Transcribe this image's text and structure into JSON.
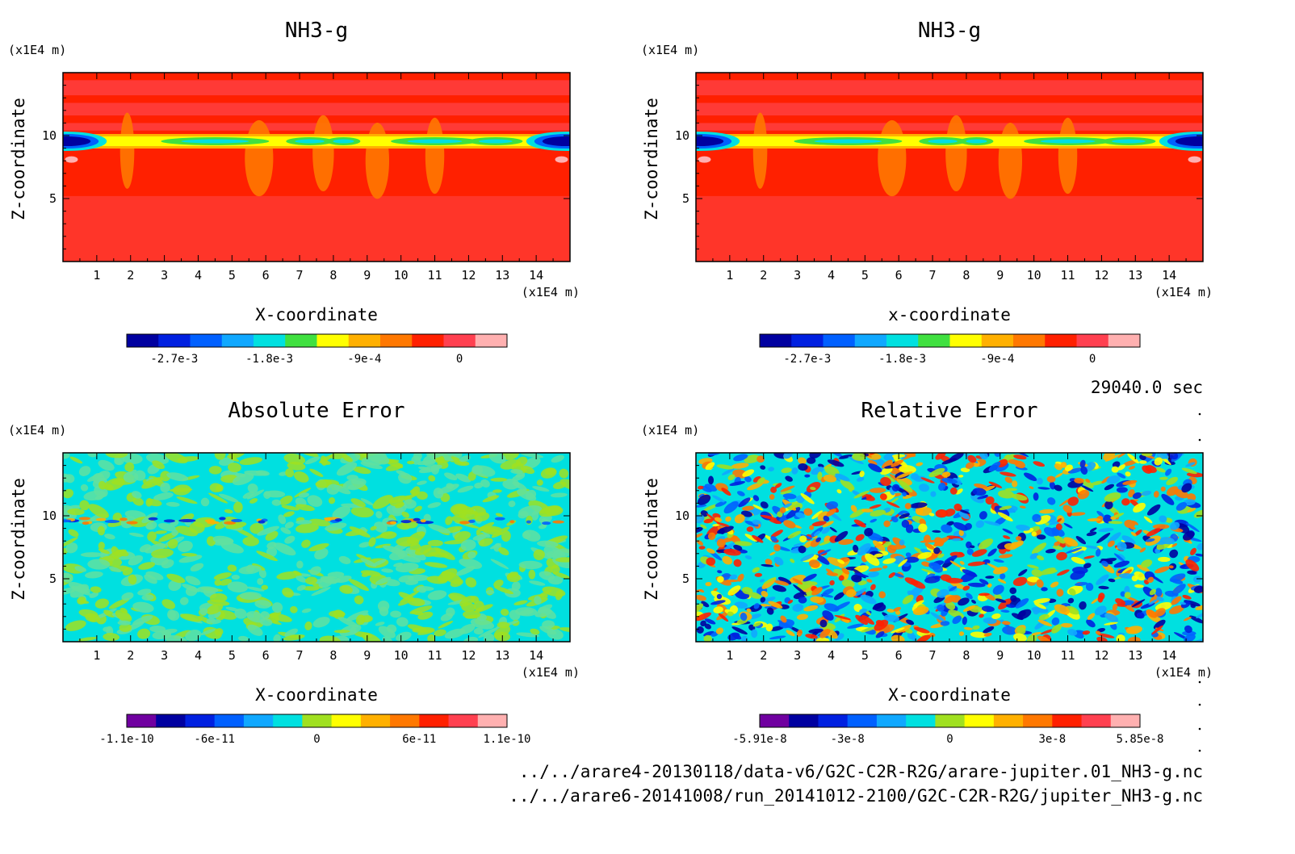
{
  "panels": [
    {
      "id": "nh3-g-left",
      "title": "NH3-g",
      "xlabel": "X-coordinate",
      "ylabel": "Z-coordinate",
      "x_unit": "(x1E4 m)",
      "y_unit": "(x1E4 m)",
      "x_ticks": [
        "1",
        "2",
        "3",
        "4",
        "5",
        "6",
        "7",
        "8",
        "9",
        "10",
        "11",
        "12",
        "13",
        "14"
      ],
      "y_ticks": [
        "5",
        "10"
      ],
      "field": "nh3",
      "colorbar": {
        "colors": [
          "#0000a0",
          "#0020e0",
          "#0060ff",
          "#10a8ff",
          "#00e0e0",
          "#40e040",
          "#ffff00",
          "#ffb000",
          "#ff7800",
          "#ff2000",
          "#ff4050",
          "#ffb0b0"
        ],
        "labels": [
          {
            "text": "-2.7e-3",
            "pos": 1.5
          },
          {
            "text": "-1.8e-3",
            "pos": 4.5
          },
          {
            "text": "-9e-4",
            "pos": 7.5
          },
          {
            "text": "0",
            "pos": 10.5
          }
        ]
      }
    },
    {
      "id": "nh3-g-right",
      "title": "NH3-g",
      "xlabel": "x-coordinate",
      "ylabel": "Z-coordinate",
      "x_unit": "(x1E4 m)",
      "y_unit": "(x1E4 m)",
      "x_ticks": [
        "1",
        "2",
        "3",
        "4",
        "5",
        "6",
        "7",
        "8",
        "9",
        "10",
        "11",
        "12",
        "13",
        "14"
      ],
      "y_ticks": [
        "5",
        "10"
      ],
      "field": "nh3",
      "colorbar": {
        "colors": [
          "#0000a0",
          "#0020e0",
          "#0060ff",
          "#10a8ff",
          "#00e0e0",
          "#40e040",
          "#ffff00",
          "#ffb000",
          "#ff7800",
          "#ff2000",
          "#ff4050",
          "#ffb0b0"
        ],
        "labels": [
          {
            "text": "-2.7e-3",
            "pos": 1.5
          },
          {
            "text": "-1.8e-3",
            "pos": 4.5
          },
          {
            "text": "-9e-4",
            "pos": 7.5
          },
          {
            "text": "0",
            "pos": 10.5
          }
        ]
      }
    },
    {
      "id": "absolute-error",
      "title": "Absolute Error",
      "xlabel": "X-coordinate",
      "ylabel": "Z-coordinate",
      "x_unit": "(x1E4 m)",
      "y_unit": "(x1E4 m)",
      "x_ticks": [
        "1",
        "2",
        "3",
        "4",
        "5",
        "6",
        "7",
        "8",
        "9",
        "10",
        "11",
        "12",
        "13",
        "14"
      ],
      "y_ticks": [
        "5",
        "10"
      ],
      "field": "abs",
      "colorbar": {
        "colors": [
          "#7000a0",
          "#0000a0",
          "#0020e0",
          "#0060ff",
          "#10a8ff",
          "#00e0e0",
          "#a0e020",
          "#ffff00",
          "#ffb000",
          "#ff7800",
          "#ff2000",
          "#ff4050",
          "#ffb0b0"
        ],
        "labels": [
          {
            "text": "-1.1e-10",
            "pos": 0
          },
          {
            "text": "-6e-11",
            "pos": 3
          },
          {
            "text": "0",
            "pos": 6.5
          },
          {
            "text": "6e-11",
            "pos": 10
          },
          {
            "text": "1.1e-10",
            "pos": 13
          }
        ]
      }
    },
    {
      "id": "relative-error",
      "title": "Relative Error",
      "xlabel": "X-coordinate",
      "ylabel": "Z-coordinate",
      "x_unit": "(x1E4 m)",
      "y_unit": "(x1E4 m)",
      "x_ticks": [
        "1",
        "2",
        "3",
        "4",
        "5",
        "6",
        "7",
        "8",
        "9",
        "10",
        "11",
        "12",
        "13",
        "14"
      ],
      "y_ticks": [
        "5",
        "10"
      ],
      "field": "rel",
      "colorbar": {
        "colors": [
          "#7000a0",
          "#0000a0",
          "#0020e0",
          "#0060ff",
          "#10a8ff",
          "#00e0e0",
          "#a0e020",
          "#ffff00",
          "#ffb000",
          "#ff7800",
          "#ff2000",
          "#ff4050",
          "#ffb0b0"
        ],
        "labels": [
          {
            "text": "-5.91e-8",
            "pos": 0
          },
          {
            "text": "-3e-8",
            "pos": 3
          },
          {
            "text": "0",
            "pos": 6.5
          },
          {
            "text": "3e-8",
            "pos": 10
          },
          {
            "text": "5.85e-8",
            "pos": 13
          }
        ]
      }
    }
  ],
  "time_label": "29040.0 sec",
  "file_paths": [
    "../../arare4-20130118/data-v6/G2C-C2R-R2G/arare-jupiter.01_NH3-g.nc",
    "../../arare6-20141008/run_20141012-2100/G2C-C2R-R2G/jupiter_NH3-g.nc"
  ],
  "chart_data": [
    {
      "type": "heatmap",
      "title": "NH3-g",
      "xlabel": "X-coordinate",
      "ylabel": "Z-coordinate",
      "x_unit": "(x1E4 m)",
      "y_unit": "(x1E4 m)",
      "xlim": [
        0,
        15
      ],
      "ylim": [
        0,
        15
      ],
      "x_ticks": [
        1,
        2,
        3,
        4,
        5,
        6,
        7,
        8,
        9,
        10,
        11,
        12,
        13,
        14
      ],
      "y_ticks": [
        5,
        10
      ],
      "colorbar_ticks": [
        -0.0027,
        -0.0018,
        -0.0009,
        0
      ],
      "description_values": "NH3-g field (values shown only via contour colors)"
    },
    {
      "type": "heatmap",
      "title": "NH3-g",
      "xlabel": "x-coordinate",
      "ylabel": "Z-coordinate",
      "x_unit": "(x1E4 m)",
      "y_unit": "(x1E4 m)",
      "xlim": [
        0,
        15
      ],
      "ylim": [
        0,
        15
      ],
      "x_ticks": [
        1,
        2,
        3,
        4,
        5,
        6,
        7,
        8,
        9,
        10,
        11,
        12,
        13,
        14
      ],
      "y_ticks": [
        5,
        10
      ],
      "colorbar_ticks": [
        -0.0027,
        -0.0018,
        -0.0009,
        0
      ]
    },
    {
      "type": "heatmap",
      "title": "Absolute Error",
      "xlabel": "X-coordinate",
      "ylabel": "Z-coordinate",
      "x_unit": "(x1E4 m)",
      "y_unit": "(x1E4 m)",
      "xlim": [
        0,
        15
      ],
      "ylim": [
        0,
        15
      ],
      "x_ticks": [
        1,
        2,
        3,
        4,
        5,
        6,
        7,
        8,
        9,
        10,
        11,
        12,
        13,
        14
      ],
      "y_ticks": [
        5,
        10
      ],
      "colorbar_ticks": [
        -1.1e-10,
        -6e-11,
        0,
        6e-11,
        1.1e-10
      ]
    },
    {
      "type": "heatmap",
      "title": "Relative Error",
      "xlabel": "X-coordinate",
      "ylabel": "Z-coordinate",
      "x_unit": "(x1E4 m)",
      "y_unit": "(x1E4 m)",
      "xlim": [
        0,
        15
      ],
      "ylim": [
        0,
        15
      ],
      "x_ticks": [
        1,
        2,
        3,
        4,
        5,
        6,
        7,
        8,
        9,
        10,
        11,
        12,
        13,
        14
      ],
      "y_ticks": [
        5,
        10
      ],
      "colorbar_ticks": [
        -5.91e-08,
        -3e-08,
        0,
        3e-08,
        5.85e-08
      ]
    }
  ]
}
